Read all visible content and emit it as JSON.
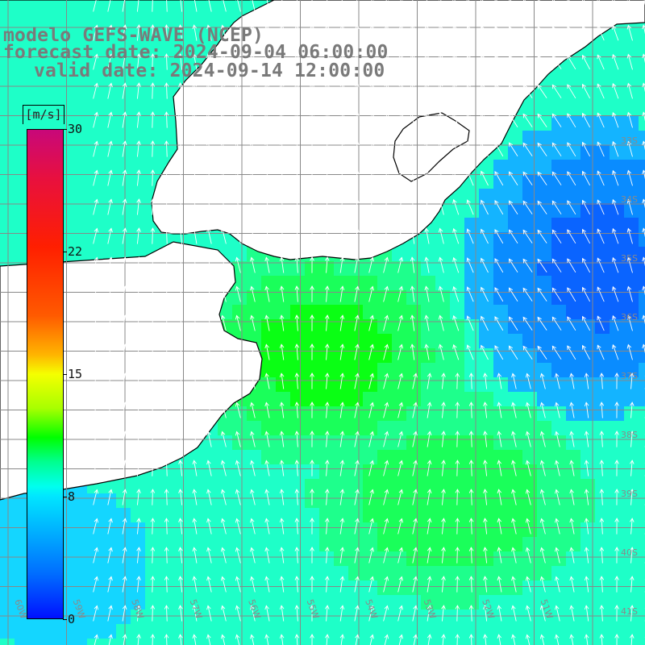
{
  "header": {
    "line1": "modelo GEFS-WAVE (NCEP)",
    "line2": "forecast date: 2024-09-04 06:00:00",
    "line3": "valid date: 2024-09-14 12:00:00"
  },
  "colorbar": {
    "unit": "[m/s]",
    "ticks": [
      "30",
      "22",
      "15",
      "8",
      "0"
    ],
    "tick_values": [
      30,
      22,
      15,
      8,
      0
    ],
    "range": [
      0,
      30
    ],
    "colors": {
      "high": "#c8087a",
      "mid_high": "#ff1f00",
      "mid": "#f5ff00",
      "green": "#00ff00",
      "cyan": "#00ffee",
      "low": "#0010ff"
    }
  },
  "map": {
    "lon_labels": [
      "60W",
      "59W",
      "58W",
      "57W",
      "56W",
      "55W",
      "54W",
      "53W",
      "52W",
      "51W"
    ],
    "lat_labels": [
      "33S",
      "34S",
      "35S",
      "36S",
      "37S",
      "38S",
      "39S",
      "40S",
      "41S"
    ],
    "land_color": "#ffffff",
    "grid_color": "#888888",
    "arrow_color": "#ffffff",
    "coastline_color": "#000000"
  }
}
